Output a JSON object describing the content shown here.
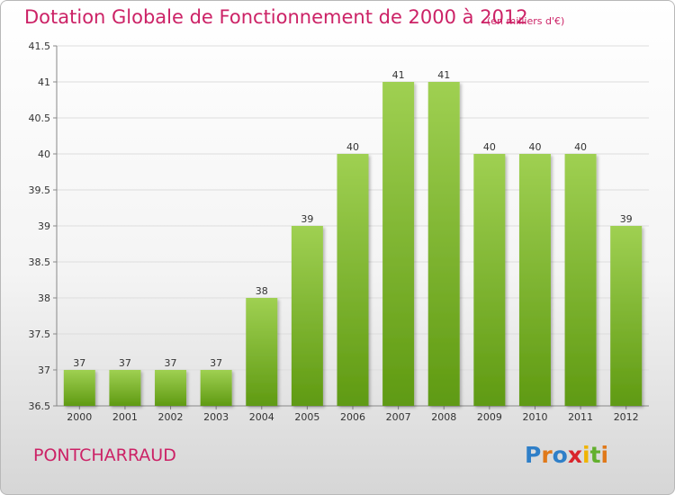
{
  "header": {
    "title": "Dotation Globale de Fonctionnement de 2000 à 2012",
    "unit": "(en milliers d'€)"
  },
  "footer": {
    "place": "PONTCHARRAUD",
    "logo": "Proxiti"
  },
  "colors": {
    "accent": "#cc2266",
    "bar_light": "#9fd052",
    "bar_dark": "#5f9a12",
    "logo_letters": [
      "#2f7fc8",
      "#e0791a",
      "#2f7fc8",
      "#d9252c",
      "#f0b400",
      "#63b02e",
      "#e0791a"
    ]
  },
  "chart_data": {
    "type": "bar",
    "categories": [
      "2000",
      "2001",
      "2002",
      "2003",
      "2004",
      "2005",
      "2006",
      "2007",
      "2008",
      "2009",
      "2010",
      "2011",
      "2012"
    ],
    "values": [
      37,
      37,
      37,
      37,
      38,
      39,
      40,
      41,
      41,
      40,
      40,
      40,
      39
    ],
    "data_labels": [
      "37",
      "37",
      "37",
      "37",
      "38",
      "39",
      "40",
      "41",
      "41",
      "40",
      "40",
      "40",
      "39"
    ],
    "yticks": [
      "36.5",
      "37",
      "37.5",
      "38",
      "38.5",
      "39",
      "39.5",
      "40",
      "40.5",
      "41",
      "41.5"
    ],
    "ylim": [
      36.5,
      41.5
    ],
    "grid": true,
    "title": "Dotation Globale de Fonctionnement de 2000 à 2012",
    "xlabel": "",
    "ylabel": ""
  }
}
